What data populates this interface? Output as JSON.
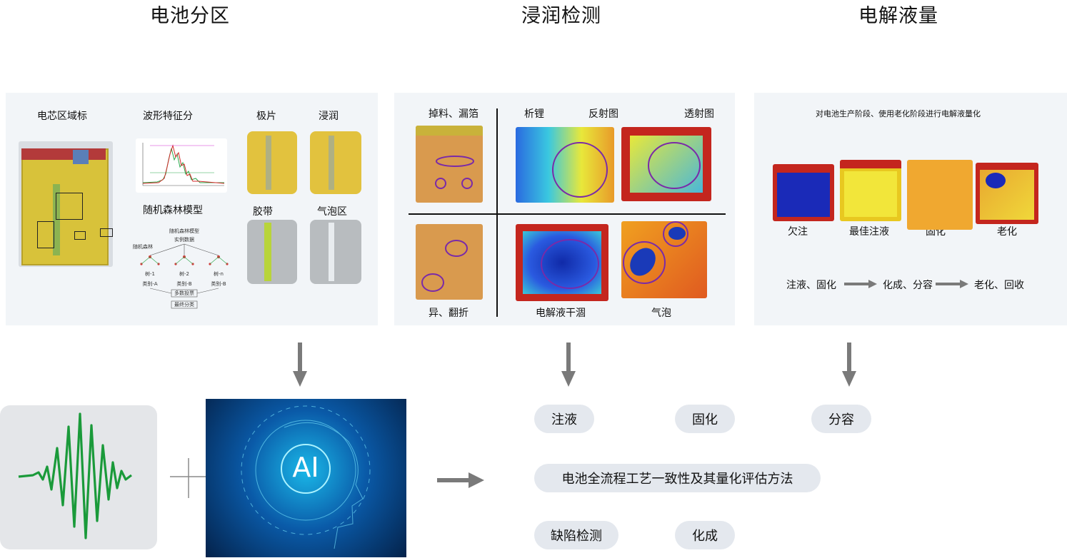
{
  "titles": {
    "partition": "电池分区",
    "wetting": "浸润检测",
    "electrolyte": "电解液量"
  },
  "panel1": {
    "cell_region_label": "电芯区域标",
    "waveform_label": "波形特征分",
    "electrode_label": "极片",
    "infiltration_label": "浸润",
    "rf_model_label": "随机森林模型",
    "tape_label": "胶带",
    "bubble_zone_label": "气泡区",
    "tree": {
      "title": "随机森林模型",
      "root": "实例数据",
      "forest": "随机森林",
      "trees": [
        "树-1",
        "树-2",
        "树-n"
      ],
      "classes": [
        "类别-A",
        "类别-B",
        "类别-B"
      ],
      "vote": "多数投票",
      "final": "最终分类"
    }
  },
  "panel2": {
    "drop_foil": "掉料、漏箔",
    "lithium": "析锂",
    "reflection": "反射图",
    "transmission": "透射图",
    "fold": "异、翻折",
    "dry": "电解液干涸",
    "bubble": "气泡"
  },
  "panel3": {
    "desc": "对电池生产阶段、使用老化阶段进行电解液量化",
    "states": [
      "欠注",
      "最佳注液",
      "固化",
      "老化"
    ],
    "flow": [
      "注液、固化",
      "化成、分容",
      "老化、回收"
    ]
  },
  "ai_text": "AI",
  "pills": {
    "injection": "注液",
    "curing": "固化",
    "capacity": "分容",
    "method": "电池全流程工艺一致性及其量化评估方法",
    "defect": "缺陷检测",
    "formation": "化成"
  },
  "colors": {
    "panel_bg": "#f2f5f8",
    "pill_bg": "#e4e8ee",
    "arrow": "#7a7a7a",
    "wave": "#1a9a3a",
    "circle": "#7a2aa8"
  }
}
